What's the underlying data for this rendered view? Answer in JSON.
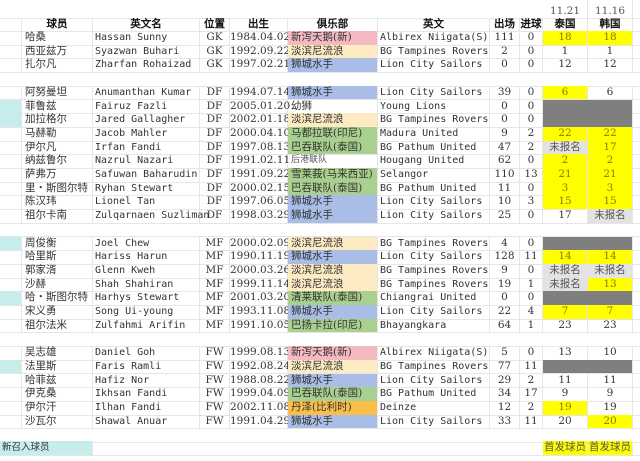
{
  "header": {
    "dates": [
      "11.21",
      "11.16"
    ],
    "columns": [
      "球员",
      "英文名",
      "位置",
      "出生",
      "俱乐部",
      "英文",
      "出场",
      "进球",
      "泰国",
      "韩国"
    ]
  },
  "colors": {
    "club_pink": "#f4b9c1",
    "club_cream": "#fdebc4",
    "club_blue": "#a9bde6",
    "club_green": "#a9d08e",
    "club_orange": "#f9bf4a",
    "starter_yellow": "#ffff00",
    "not_registered_gray": "#e3e3e3",
    "not_called_dark": "#7f7f7f",
    "new_call_up_teal": "#c6ecec"
  },
  "rows": [
    {
      "cn": "哈桑",
      "en": "Hassan Sunny",
      "pos": "GK",
      "born": "1984.04.02",
      "club": "新泻天鹅(新)",
      "club_color": "pink",
      "club_en": "Albirex Niigata(S)",
      "apps": "111",
      "goals": "0",
      "th": "18",
      "th_s": "y",
      "kr": "18",
      "kr_s": "y"
    },
    {
      "cn": "西亚兹万",
      "en": "Syazwan Buhari",
      "pos": "GK",
      "born": "1992.09.22",
      "club": "淡滨尼流浪",
      "club_color": "cream",
      "club_en": "BG Tampines Rovers",
      "apps": "2",
      "goals": "0",
      "th": "1",
      "kr": "1"
    },
    {
      "cn": "扎尔凡",
      "en": "Zharfan Rohaizad",
      "pos": "GK",
      "born": "1997.02.21",
      "club": "狮城水手",
      "club_color": "blue",
      "club_en": "Lion City Sailors",
      "apps": "0",
      "goals": "0",
      "th": "12",
      "kr": "12"
    },
    {
      "blank": true
    },
    {
      "cn": "阿努曼坦",
      "en": "Anumanthan Kumar",
      "pos": "DF",
      "born": "1994.07.14",
      "club": "狮城水手",
      "club_color": "blue",
      "club_en": "Lion City Sailors",
      "apps": "39",
      "goals": "0",
      "th": "6",
      "th_s": "y",
      "kr": "6"
    },
    {
      "new": true,
      "cn": "菲鲁兹",
      "en": "Fairuz Fazli",
      "pos": "DF",
      "born": "2005.01.20",
      "club": "幼狮",
      "club_en": "Young Lions",
      "apps": "0",
      "goals": "0",
      "th_s": "d",
      "kr_s": "d"
    },
    {
      "new": true,
      "cn": "加拉格尔",
      "en": "Jared Gallagher",
      "pos": "DF",
      "born": "2002.01.18",
      "club": "淡滨尼流浪",
      "club_color": "cream",
      "club_en": "BG Tampines Rovers",
      "apps": "0",
      "goals": "0",
      "th_s": "d",
      "kr_s": "d"
    },
    {
      "cn": "马赫勒",
      "en": "Jacob Mahler",
      "pos": "DF",
      "born": "2000.04.10",
      "club": "马都拉联(印尼)",
      "club_color": "green",
      "club_en": "Madura United",
      "apps": "9",
      "goals": "2",
      "th": "22",
      "th_s": "y",
      "kr": "22",
      "kr_s": "y"
    },
    {
      "cn": "伊尔凡",
      "en": "Irfan Fandi",
      "pos": "DF",
      "born": "1997.08.13",
      "club": "巴吞联队(泰国)",
      "club_color": "green",
      "club_en": "BG Pathum United",
      "apps": "47",
      "goals": "2",
      "th": "未报名",
      "th_s": "g",
      "kr": "17",
      "kr_s": "y"
    },
    {
      "cn": "纳兹鲁尔",
      "en": "Nazrul Nazari",
      "pos": "DF",
      "born": "1991.02.11",
      "club": "后港联队",
      "club_small": true,
      "club_en": "Hougang United",
      "apps": "62",
      "goals": "0",
      "th": "2",
      "th_s": "y",
      "kr": "2",
      "kr_s": "y"
    },
    {
      "cn": "萨弗万",
      "en": "Safuwan Baharudin",
      "pos": "DF",
      "born": "1991.09.22",
      "club": "雪莱莪(马来西亚)",
      "club_color": "green",
      "club_en": "Selangor",
      "apps": "110",
      "goals": "13",
      "th": "21",
      "th_s": "y",
      "kr": "21",
      "kr_s": "y"
    },
    {
      "cn": "里・斯图尔特",
      "en": "Ryhan Stewart",
      "pos": "DF",
      "born": "2000.02.15",
      "club": "巴吞联队(泰国)",
      "club_color": "green",
      "club_en": "BG Pathum United",
      "apps": "11",
      "goals": "0",
      "th": "3",
      "th_s": "y",
      "kr": "3",
      "kr_s": "y"
    },
    {
      "cn": "陈汉玮",
      "en": "Lionel Tan",
      "pos": "DF",
      "born": "1997.06.05",
      "club": "狮城水手",
      "club_color": "blue",
      "club_en": "Lion City Sailors",
      "apps": "10",
      "goals": "3",
      "th": "15",
      "th_s": "y",
      "kr": "15",
      "kr_s": "y"
    },
    {
      "cn": "祖尔卡南",
      "en": "Zulqarnaen Suzliman",
      "pos": "DF",
      "born": "1998.03.29",
      "club": "狮城水手",
      "club_color": "blue",
      "club_en": "Lion City Sailors",
      "apps": "25",
      "goals": "0",
      "th": "17",
      "kr": "未报名",
      "kr_s": "g"
    },
    {
      "blank": true
    },
    {
      "new": true,
      "cn": "周俊衡",
      "en": "Joel Chew",
      "pos": "MF",
      "born": "2000.02.09",
      "club": "淡滨尼流浪",
      "club_color": "cream",
      "club_en": "BG Tampines Rovers",
      "apps": "4",
      "goals": "0",
      "th_s": "d",
      "kr_s": "d"
    },
    {
      "cn": "哈里斯",
      "en": "Hariss Harun",
      "pos": "MF",
      "born": "1990.11.19",
      "club": "狮城水手",
      "club_color": "blue",
      "club_en": "Lion City Sailors",
      "apps": "128",
      "goals": "11",
      "th": "14",
      "th_s": "y",
      "kr": "14",
      "kr_s": "y"
    },
    {
      "cn": "郭家湑",
      "en": "Glenn Kweh",
      "pos": "MF",
      "born": "2000.03.26",
      "club": "淡滨尼流浪",
      "club_color": "cream",
      "club_en": "BG Tampines Rovers",
      "apps": "9",
      "goals": "0",
      "th": "未报名",
      "th_s": "g",
      "kr": "未报名",
      "kr_s": "g"
    },
    {
      "cn": "沙赫",
      "en": "Shah Shahiran",
      "pos": "MF",
      "born": "1999.11.14",
      "club": "淡滨尼流浪",
      "club_color": "cream",
      "club_en": "BG Tampines Rovers",
      "apps": "19",
      "goals": "1",
      "th": "未报名",
      "th_s": "g",
      "kr": "13",
      "kr_s": "y"
    },
    {
      "new": true,
      "cn": "哈・斯图尔特",
      "en": "Harhys Stewart",
      "pos": "MF",
      "born": "2001.03.20",
      "club": "清莱联队(泰国)",
      "club_color": "green",
      "club_en": "Chiangrai United",
      "apps": "0",
      "goals": "0",
      "th_s": "d",
      "kr_s": "d"
    },
    {
      "cn": "宋义勇",
      "en": "Song Ui-young",
      "pos": "MF",
      "born": "1993.11.08",
      "club": "狮城水手",
      "club_color": "blue",
      "club_en": "Lion City Sailors",
      "apps": "22",
      "goals": "4",
      "th": "7",
      "th_s": "y",
      "kr": "7",
      "kr_s": "y"
    },
    {
      "cn": "祖尔法米",
      "en": "Zulfahmi Arifin",
      "pos": "MF",
      "born": "1991.10.05",
      "club": "巴扬卡拉(印尼)",
      "club_color": "green",
      "club_en": "Bhayangkara",
      "apps": "64",
      "goals": "1",
      "th": "23",
      "kr": "23"
    },
    {
      "blank": true
    },
    {
      "cn": "吴志雄",
      "en": "Daniel Goh",
      "pos": "FW",
      "born": "1999.08.13",
      "club": "新泻天鹅(新)",
      "club_color": "pink",
      "club_en": "Albirex Niigata(S)",
      "apps": "5",
      "goals": "0",
      "th": "13",
      "kr": "10"
    },
    {
      "new": true,
      "cn": "法里斯",
      "en": "Faris Ramli",
      "pos": "FW",
      "born": "1992.08.24",
      "club": "淡滨尼流浪",
      "club_color": "cream",
      "club_en": "BG Tampines Rovers",
      "apps": "77",
      "goals": "11",
      "th_s": "d",
      "kr_s": "d"
    },
    {
      "cn": "哈菲兹",
      "en": "Hafiz Nor",
      "pos": "FW",
      "born": "1988.08.22",
      "club": "狮城水手",
      "club_color": "blue",
      "club_en": "Lion City Sailors",
      "apps": "29",
      "goals": "2",
      "th": "11",
      "kr": "11"
    },
    {
      "cn": "伊克桑",
      "en": "Ikhsan Fandi",
      "pos": "FW",
      "born": "1999.04.09",
      "club": "巴吞联队(泰国)",
      "club_color": "green",
      "club_en": "BG Pathum United",
      "apps": "34",
      "goals": "17",
      "th": "9",
      "kr": "9"
    },
    {
      "cn": "伊尔汗",
      "en": "Ilhan Fandi",
      "pos": "FW",
      "born": "2002.11.08",
      "club": "丹泽(比利时)",
      "club_color": "orange",
      "club_en": "Deinze",
      "apps": "12",
      "goals": "2",
      "th": "19",
      "th_s": "y",
      "kr": "19"
    },
    {
      "cn": "沙瓦尔",
      "en": "Shawal Anuar",
      "pos": "FW",
      "born": "1991.04.29",
      "club": "狮城水手",
      "club_color": "blue",
      "club_en": "Lion City Sailors",
      "apps": "33",
      "goals": "11",
      "th": "20",
      "kr": "20",
      "kr_s": "y"
    },
    {
      "blank": true
    }
  ],
  "legend": {
    "new_call_up": "新召入球员",
    "starter_th": "首发球员",
    "starter_kr": "首发球员"
  }
}
